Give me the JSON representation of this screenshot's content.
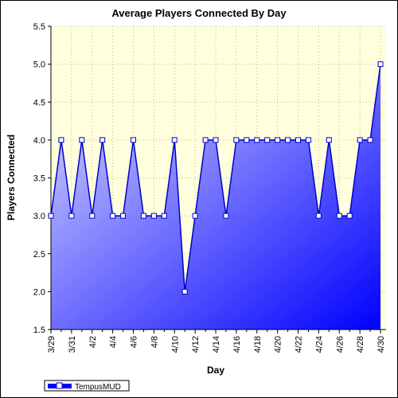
{
  "colors": {
    "plot_background": "#FFFFDD",
    "area_gradient_start": "#DDDDFF",
    "area_gradient_end": "#0000FF",
    "line": "#0000CC",
    "marker_fill": "#FFFFFF",
    "grid": "#BBBB99"
  },
  "chart_data": {
    "type": "area",
    "title": "Average Players Connected By Day",
    "xlabel": "Day",
    "ylabel": "Players Connected",
    "ylim": [
      1.5,
      5.5
    ],
    "yticks": [
      "1.5",
      "2.0",
      "2.5",
      "3.0",
      "3.5",
      "4.0",
      "4.5",
      "5.0",
      "5.5"
    ],
    "grid": true,
    "legend_position": "bottom-left",
    "x": [
      "3/29",
      "3/30",
      "3/31",
      "4/1",
      "4/2",
      "4/3",
      "4/4",
      "4/5",
      "4/6",
      "4/7",
      "4/8",
      "4/9",
      "4/10",
      "4/11",
      "4/12",
      "4/13",
      "4/14",
      "4/15",
      "4/16",
      "4/17",
      "4/18",
      "4/19",
      "4/20",
      "4/21",
      "4/22",
      "4/23",
      "4/24",
      "4/25",
      "4/26",
      "4/27",
      "4/28",
      "4/29",
      "4/30"
    ],
    "xtick_labels": [
      "3/29",
      "3/31",
      "4/2",
      "4/4",
      "4/6",
      "4/8",
      "4/10",
      "4/12",
      "4/14",
      "4/16",
      "4/18",
      "4/20",
      "4/22",
      "4/24",
      "4/26",
      "4/28",
      "4/30"
    ],
    "series": [
      {
        "name": "TempusMUD",
        "values": [
          3,
          4,
          3,
          4,
          3,
          4,
          3,
          3,
          4,
          3,
          3,
          3,
          4,
          2,
          3,
          4,
          4,
          3,
          4,
          4,
          4,
          4,
          4,
          4,
          4,
          4,
          3,
          4,
          3,
          3,
          4,
          4,
          5
        ]
      }
    ]
  }
}
